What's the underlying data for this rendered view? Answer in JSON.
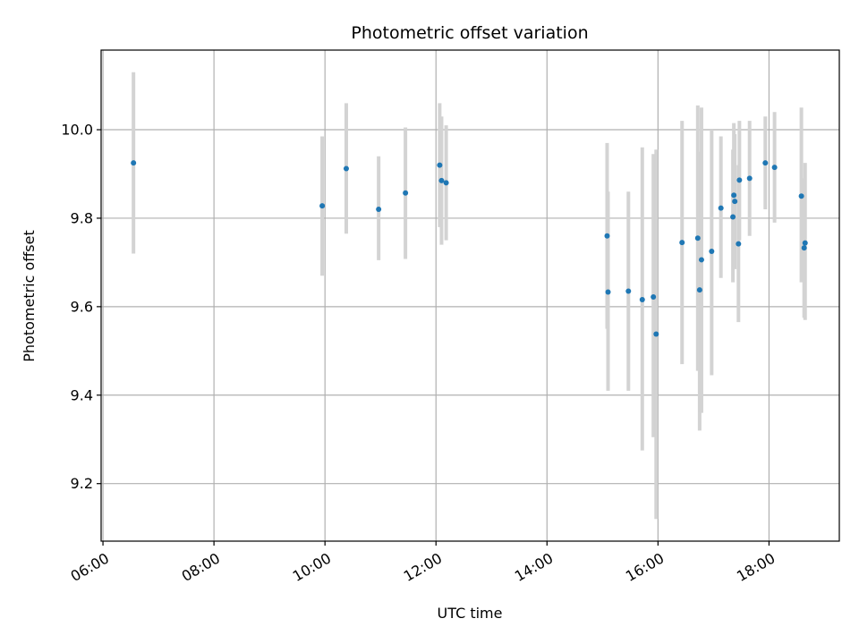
{
  "chart_data": {
    "type": "scatter",
    "title": "Photometric offset variation",
    "xlabel": "UTC time",
    "ylabel": "Photometric offset",
    "x_axis_type": "time",
    "xlim": [
      "05:58",
      "19:16"
    ],
    "ylim": [
      9.07,
      10.18
    ],
    "grid": true,
    "x_ticks": [
      "06:00",
      "08:00",
      "10:00",
      "12:00",
      "14:00",
      "16:00",
      "18:00"
    ],
    "y_ticks": [
      9.2,
      9.4,
      9.6,
      9.8,
      10.0
    ],
    "y_tick_labels": [
      "9.2",
      "9.4",
      "9.6",
      "9.8",
      "10.0"
    ],
    "colors": {
      "marker": "#1f77b4",
      "errorbar": "#d3d3d3",
      "grid": "#b0b0b0",
      "axes": "#000000"
    },
    "points": [
      {
        "t": "06:33",
        "y": 9.925,
        "ylo": 9.72,
        "yhi": 10.13
      },
      {
        "t": "09:57",
        "y": 9.828,
        "ylo": 9.67,
        "yhi": 9.985
      },
      {
        "t": "10:23",
        "y": 9.912,
        "ylo": 9.765,
        "yhi": 10.06
      },
      {
        "t": "10:58",
        "y": 9.82,
        "ylo": 9.705,
        "yhi": 9.94
      },
      {
        "t": "11:27",
        "y": 9.857,
        "ylo": 9.708,
        "yhi": 10.005
      },
      {
        "t": "12:04",
        "y": 9.92,
        "ylo": 9.78,
        "yhi": 10.06
      },
      {
        "t": "12:06",
        "y": 9.885,
        "ylo": 9.74,
        "yhi": 10.03
      },
      {
        "t": "12:11",
        "y": 9.88,
        "ylo": 9.75,
        "yhi": 10.01
      },
      {
        "t": "15:05",
        "y": 9.76,
        "ylo": 9.55,
        "yhi": 9.97
      },
      {
        "t": "15:06",
        "y": 9.633,
        "ylo": 9.41,
        "yhi": 9.86
      },
      {
        "t": "15:28",
        "y": 9.635,
        "ylo": 9.41,
        "yhi": 9.86
      },
      {
        "t": "15:43",
        "y": 9.616,
        "ylo": 9.275,
        "yhi": 9.96
      },
      {
        "t": "15:55",
        "y": 9.622,
        "ylo": 9.305,
        "yhi": 9.945
      },
      {
        "t": "15:58",
        "y": 9.538,
        "ylo": 9.12,
        "yhi": 9.955
      },
      {
        "t": "16:26",
        "y": 9.745,
        "ylo": 9.47,
        "yhi": 10.02
      },
      {
        "t": "16:43",
        "y": 9.755,
        "ylo": 9.455,
        "yhi": 10.055
      },
      {
        "t": "16:45",
        "y": 9.638,
        "ylo": 9.32,
        "yhi": 9.95
      },
      {
        "t": "16:47",
        "y": 9.706,
        "ylo": 9.36,
        "yhi": 10.05
      },
      {
        "t": "16:58",
        "y": 9.725,
        "ylo": 9.445,
        "yhi": 10.0
      },
      {
        "t": "17:08",
        "y": 9.823,
        "ylo": 9.665,
        "yhi": 9.985
      },
      {
        "t": "17:21",
        "y": 9.803,
        "ylo": 9.655,
        "yhi": 9.955
      },
      {
        "t": "17:22",
        "y": 9.852,
        "ylo": 9.69,
        "yhi": 10.015
      },
      {
        "t": "17:23",
        "y": 9.838,
        "ylo": 9.685,
        "yhi": 9.99
      },
      {
        "t": "17:27",
        "y": 9.742,
        "ylo": 9.565,
        "yhi": 9.92
      },
      {
        "t": "17:28",
        "y": 9.886,
        "ylo": 9.75,
        "yhi": 10.02
      },
      {
        "t": "17:39",
        "y": 9.89,
        "ylo": 9.76,
        "yhi": 10.02
      },
      {
        "t": "17:56",
        "y": 9.925,
        "ylo": 9.82,
        "yhi": 10.03
      },
      {
        "t": "18:06",
        "y": 9.915,
        "ylo": 9.79,
        "yhi": 10.04
      },
      {
        "t": "18:35",
        "y": 9.85,
        "ylo": 9.655,
        "yhi": 10.05
      },
      {
        "t": "18:38",
        "y": 9.733,
        "ylo": 9.575,
        "yhi": 9.89
      },
      {
        "t": "18:39",
        "y": 9.744,
        "ylo": 9.57,
        "yhi": 9.925
      }
    ]
  }
}
